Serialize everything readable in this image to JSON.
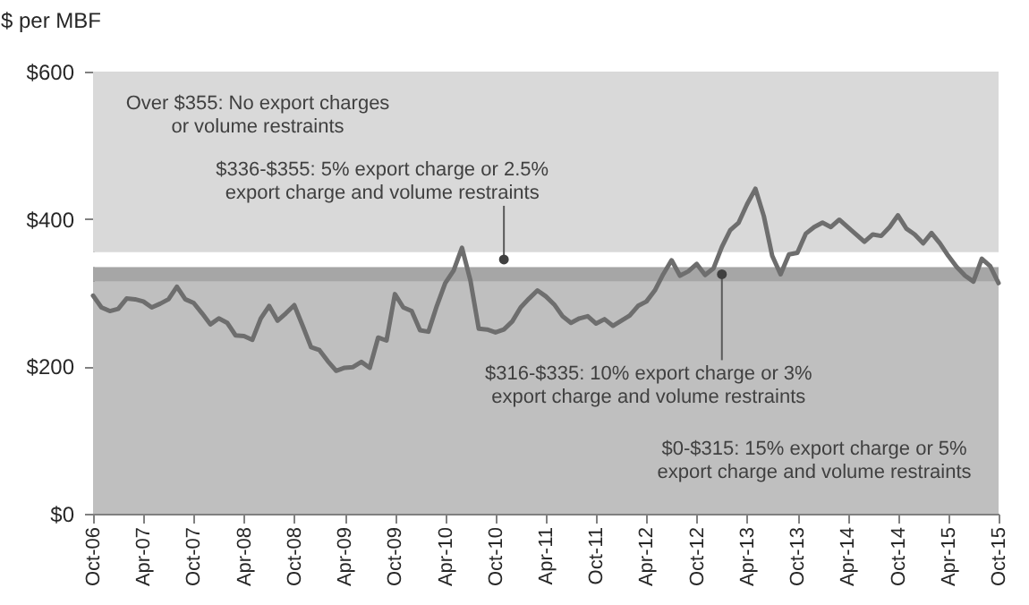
{
  "chart_data": {
    "type": "line",
    "ylabel": "$ per MBF",
    "x": [
      "2006-10",
      "2006-11",
      "2006-12",
      "2007-01",
      "2007-02",
      "2007-03",
      "2007-04",
      "2007-05",
      "2007-06",
      "2007-07",
      "2007-08",
      "2007-09",
      "2007-10",
      "2007-11",
      "2007-12",
      "2008-01",
      "2008-02",
      "2008-03",
      "2008-04",
      "2008-05",
      "2008-06",
      "2008-07",
      "2008-08",
      "2008-09",
      "2008-10",
      "2008-11",
      "2008-12",
      "2009-01",
      "2009-02",
      "2009-03",
      "2009-04",
      "2009-05",
      "2009-06",
      "2009-07",
      "2009-08",
      "2009-09",
      "2009-10",
      "2009-11",
      "2009-12",
      "2010-01",
      "2010-02",
      "2010-03",
      "2010-04",
      "2010-05",
      "2010-06",
      "2010-07",
      "2010-08",
      "2010-09",
      "2010-10",
      "2010-11",
      "2010-12",
      "2011-01",
      "2011-02",
      "2011-03",
      "2011-04",
      "2011-05",
      "2011-06",
      "2011-07",
      "2011-08",
      "2011-09",
      "2011-10",
      "2011-11",
      "2011-12",
      "2012-01",
      "2012-02",
      "2012-03",
      "2012-04",
      "2012-05",
      "2012-06",
      "2012-07",
      "2012-08",
      "2012-09",
      "2012-10",
      "2012-11",
      "2012-12",
      "2013-01",
      "2013-02",
      "2013-03",
      "2013-04",
      "2013-05",
      "2013-06",
      "2013-07",
      "2013-08",
      "2013-09",
      "2013-10",
      "2013-11",
      "2013-12",
      "2014-01",
      "2014-02",
      "2014-03",
      "2014-04",
      "2014-05",
      "2014-06",
      "2014-07",
      "2014-08",
      "2014-09",
      "2014-10",
      "2014-11",
      "2014-12",
      "2015-01",
      "2015-02",
      "2015-03",
      "2015-04",
      "2015-05",
      "2015-06",
      "2015-07",
      "2015-08",
      "2015-09",
      "2015-10"
    ],
    "series": [
      {
        "color": "#6e6e6e",
        "values": [
          296,
          280,
          275,
          278,
          292,
          291,
          288,
          280,
          285,
          291,
          308,
          291,
          286,
          272,
          257,
          265,
          259,
          242,
          241,
          236,
          265,
          282,
          262,
          272,
          283,
          255,
          226,
          222,
          207,
          194,
          198,
          199,
          206,
          198,
          239,
          235,
          298,
          280,
          275,
          249,
          247,
          282,
          313,
          330,
          361,
          317,
          251,
          250,
          246,
          250,
          261,
          280,
          292,
          303,
          295,
          284,
          268,
          259,
          265,
          268,
          258,
          264,
          255,
          262,
          269,
          282,
          288,
          303,
          325,
          344,
          323,
          329,
          339,
          324,
          333,
          362,
          385,
          395,
          420,
          441,
          404,
          350,
          325,
          352,
          354,
          380,
          389,
          395,
          389,
          399,
          389,
          379,
          369,
          379,
          377,
          389,
          405,
          387,
          379,
          367,
          381,
          367,
          350,
          335,
          323,
          315,
          346,
          336,
          313
        ]
      }
    ],
    "xlim": [
      "2006-10",
      "2015-10"
    ],
    "xticks": [
      {
        "value": "2006-10",
        "label": "Oct-06"
      },
      {
        "value": "2007-04",
        "label": "Apr-07"
      },
      {
        "value": "2007-10",
        "label": "Oct-07"
      },
      {
        "value": "2008-04",
        "label": "Apr-08"
      },
      {
        "value": "2008-10",
        "label": "Oct-08"
      },
      {
        "value": "2009-04",
        "label": "Apr-09"
      },
      {
        "value": "2009-10",
        "label": "Oct-09"
      },
      {
        "value": "2010-04",
        "label": "Apr-10"
      },
      {
        "value": "2010-10",
        "label": "Oct-10"
      },
      {
        "value": "2011-04",
        "label": "Apr-11"
      },
      {
        "value": "2011-10",
        "label": "Oct-11"
      },
      {
        "value": "2012-04",
        "label": "Apr-12"
      },
      {
        "value": "2012-10",
        "label": "Oct-12"
      },
      {
        "value": "2013-04",
        "label": "Apr-13"
      },
      {
        "value": "2013-10",
        "label": "Oct-13"
      },
      {
        "value": "2014-04",
        "label": "Apr-14"
      },
      {
        "value": "2014-10",
        "label": "Oct-14"
      },
      {
        "value": "2015-04",
        "label": "Apr-15"
      },
      {
        "value": "2015-10",
        "label": "Oct-15"
      }
    ],
    "ylim": [
      0,
      600
    ],
    "yticks": [
      {
        "value": 0,
        "label": "$0"
      },
      {
        "value": 200,
        "label": "$200"
      },
      {
        "value": 400,
        "label": "$400"
      },
      {
        "value": 600,
        "label": "$600"
      }
    ],
    "bands": [
      {
        "axis": "y",
        "from": 0,
        "to": 315,
        "color": "#bfbfbf"
      },
      {
        "axis": "y",
        "from": 315,
        "to": 335,
        "color": "#a6a6a6"
      },
      {
        "axis": "y",
        "from": 335,
        "to": 355,
        "color": "#ffffff"
      },
      {
        "axis": "y",
        "from": 355,
        "to": 600,
        "color": "#d9d9d9"
      }
    ],
    "annotations": [
      "Over $355: No export charges or volume restraints",
      {
        "text": "$336-$355: 5% export charge or 2.5% export charge and volume restraints",
        "x": "2010-11",
        "y": 345
      },
      {
        "text": "$316-$335: 10% export charge or 3% export charge and volume restraints",
        "x": "2013-01",
        "y": 325
      },
      "$0-$315: 15% export charge or 5% export charge and volume restraints"
    ],
    "grid": false,
    "marker": "none",
    "line_style": "solid"
  }
}
